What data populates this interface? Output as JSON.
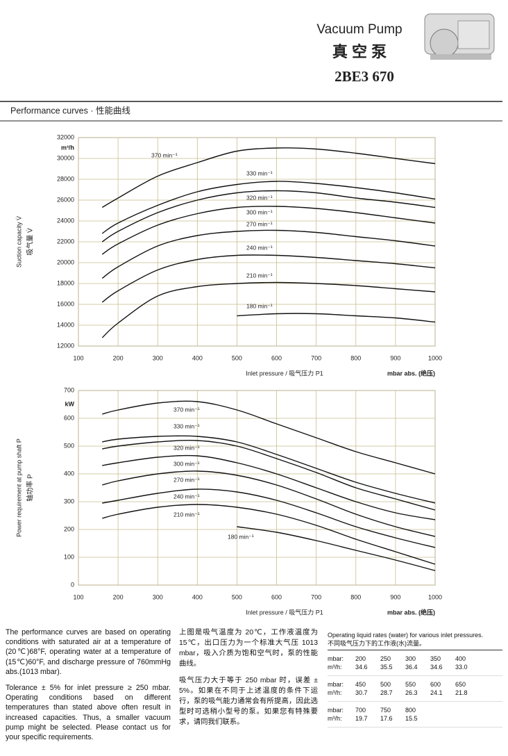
{
  "header": {
    "title": "Vacuum Pump",
    "title_cn": "真 空 泵",
    "model": "2BE3 670"
  },
  "section_title": "Performance curves · 性能曲线",
  "chart_data": [
    {
      "type": "line",
      "y_label": "Suction capacity V̇",
      "y_label_cn": "吸气量 V̇",
      "y_unit": "m³/h",
      "x_label": "Inlet pressure / 吸气压力 P1",
      "x_unit": "mbar abs. (绝压)",
      "x": [
        160,
        200,
        300,
        400,
        500,
        600,
        700,
        800,
        900,
        1000
      ],
      "xlim": [
        100,
        1000
      ],
      "xticks": [
        100,
        200,
        300,
        400,
        500,
        600,
        700,
        800,
        900,
        1000
      ],
      "ylim": [
        12000,
        32000
      ],
      "yticks": [
        12000,
        14000,
        16000,
        18000,
        20000,
        22000,
        24000,
        26000,
        28000,
        30000,
        32000
      ],
      "grid": true,
      "grid_color": "#c9bd8e",
      "series": [
        {
          "name": "370 min⁻¹",
          "color": "#111111",
          "values": [
            25300,
            26200,
            28300,
            29600,
            30700,
            31000,
            30900,
            30500,
            30000,
            29500
          ]
        },
        {
          "name": "330 min⁻¹",
          "color": "#111111",
          "values": [
            22800,
            23800,
            25500,
            26800,
            27500,
            27800,
            27600,
            27200,
            26700,
            26100
          ]
        },
        {
          "name": "320 min⁻¹",
          "color": "#111111",
          "values": [
            22000,
            23000,
            24800,
            26000,
            26700,
            26900,
            26700,
            26200,
            25800,
            25300
          ]
        },
        {
          "name": "300 min⁻¹",
          "color": "#111111",
          "values": [
            20800,
            21800,
            23600,
            24700,
            25300,
            25400,
            25200,
            24800,
            24300,
            23800
          ]
        },
        {
          "name": "270 min⁻¹",
          "color": "#111111",
          "values": [
            18500,
            19600,
            21600,
            22600,
            23000,
            23100,
            22900,
            22500,
            22100,
            21600
          ]
        },
        {
          "name": "240 min⁻¹",
          "color": "#111111",
          "values": [
            16200,
            17300,
            19300,
            20300,
            20700,
            20700,
            20500,
            20200,
            19900,
            19500
          ]
        },
        {
          "name": "210 min⁻¹",
          "color": "#111111",
          "values": [
            12800,
            14200,
            16800,
            17700,
            18000,
            18100,
            18000,
            17800,
            17500,
            17200
          ]
        },
        {
          "name": "180 min⁻¹",
          "color": "#111111",
          "values": [
            null,
            null,
            null,
            null,
            14900,
            15100,
            15100,
            14900,
            14700,
            14300
          ]
        }
      ]
    },
    {
      "type": "line",
      "y_label": "Power requirement at pump shaft P",
      "y_label_cn": "轴功率 P",
      "y_unit": "kW",
      "x_label": "Inlet pressure / 吸气压力 P1",
      "x_unit": "mbar abs. (绝压)",
      "x": [
        160,
        200,
        300,
        400,
        500,
        600,
        700,
        800,
        900,
        1000
      ],
      "xlim": [
        100,
        1000
      ],
      "xticks": [
        100,
        200,
        300,
        400,
        500,
        600,
        700,
        800,
        900,
        1000
      ],
      "ylim": [
        0,
        700
      ],
      "yticks": [
        0,
        100,
        200,
        300,
        400,
        500,
        600,
        700
      ],
      "grid": true,
      "grid_color": "#c9bd8e",
      "series": [
        {
          "name": "370 min⁻¹",
          "color": "#111111",
          "values": [
            615,
            630,
            655,
            660,
            630,
            580,
            530,
            480,
            440,
            400
          ]
        },
        {
          "name": "330 min⁻¹",
          "color": "#111111",
          "values": [
            515,
            525,
            535,
            535,
            515,
            470,
            420,
            370,
            330,
            295
          ]
        },
        {
          "name": "320 min⁻¹",
          "color": "#111111",
          "values": [
            490,
            500,
            515,
            520,
            500,
            455,
            405,
            350,
            310,
            270
          ]
        },
        {
          "name": "300 min⁻¹",
          "color": "#111111",
          "values": [
            430,
            440,
            460,
            465,
            440,
            400,
            350,
            300,
            260,
            235
          ]
        },
        {
          "name": "270 min⁻¹",
          "color": "#111111",
          "values": [
            360,
            375,
            400,
            410,
            395,
            360,
            310,
            255,
            210,
            175
          ]
        },
        {
          "name": "240 min⁻¹",
          "color": "#111111",
          "values": [
            295,
            305,
            330,
            345,
            335,
            305,
            260,
            210,
            170,
            135
          ]
        },
        {
          "name": "210 min⁻¹",
          "color": "#111111",
          "values": [
            240,
            255,
            280,
            290,
            280,
            255,
            215,
            165,
            120,
            75
          ]
        },
        {
          "name": "180 min⁻¹",
          "color": "#111111",
          "values": [
            null,
            null,
            null,
            null,
            210,
            190,
            160,
            125,
            90,
            52
          ]
        }
      ]
    }
  ],
  "notes_en": [
    "The performance curves are based on operating conditions with saturated air at a temperature of (20℃)68°F, operating water at a temperature of (15℃)60°F, and discharge pressure of 760mmHg abs.(1013 mbar).",
    "Tolerance ± 5% for inlet pressure ≥ 250 mbar. Operating conditions based on different temperatures than stated above often result in increased capacities. Thus, a smaller vacuum pump might be selected. Please contact us for your specific requirements."
  ],
  "notes_cn": [
    "上图是吸气温度为 20℃，工作液温度为 15℃，出口压力为一个标准大气压 1013 mbar，吸入介质为饱和空气时，泵的性能曲线。",
    "吸气压力大于等于 250 mbar 时，误差 ± 5%。如果在不同于上述温度的条件下运行，泵的吸气能力通常会有所提高，因此选型时可选稍小型号的泵。如果您有特殊要求，请同我们联系。"
  ],
  "table": {
    "caption": "Operating liquid rates (water) for various inlet pressures.",
    "caption_cn": "不同吸气压力下的工作液(水)流量。",
    "groups": [
      [
        [
          "mbar:",
          "200",
          "250",
          "300",
          "350",
          "400"
        ],
        [
          "m³/h:",
          "34.6",
          "35.5",
          "36.4",
          "34.6",
          "33.0"
        ]
      ],
      [
        [
          "mbar:",
          "450",
          "500",
          "550",
          "600",
          "650"
        ],
        [
          "m³/h:",
          "30.7",
          "28.7",
          "26.3",
          "24.1",
          "21.8"
        ]
      ],
      [
        [
          "mbar:",
          "700",
          "750",
          "800"
        ],
        [
          "m³/h:",
          "19.7",
          "17.6",
          "15.5"
        ]
      ]
    ]
  }
}
